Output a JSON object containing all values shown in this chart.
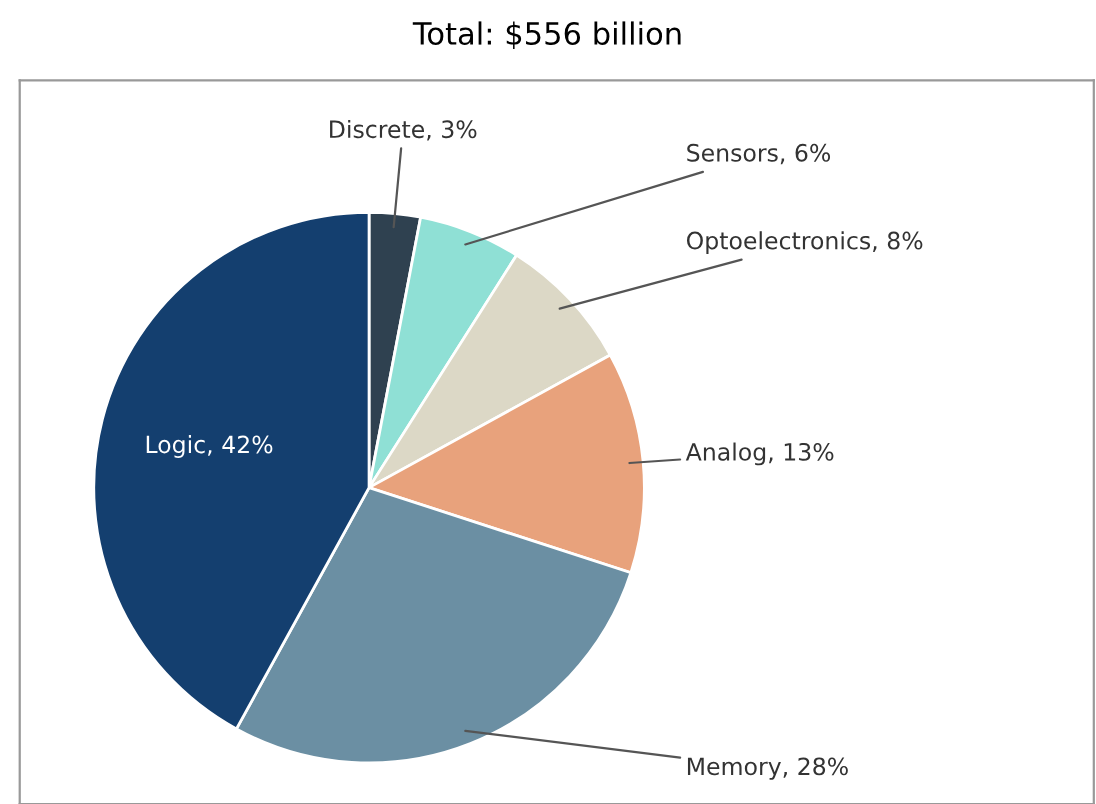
{
  "chart_data": {
    "type": "pie",
    "title": "Total: $556 billion",
    "categories": [
      "Discrete",
      "Sensors",
      "Optoelectronics",
      "Analog",
      "Memory",
      "Logic"
    ],
    "values": [
      3,
      6,
      8,
      13,
      28,
      42
    ],
    "value_labels": [
      "3%",
      "6%",
      "8%",
      "13%",
      "28%",
      "42%"
    ],
    "colors": [
      "#2f4150",
      "#8fe0d5",
      "#dcd8c6",
      "#e8a27c",
      "#6b8fa3",
      "#143f6f"
    ]
  }
}
